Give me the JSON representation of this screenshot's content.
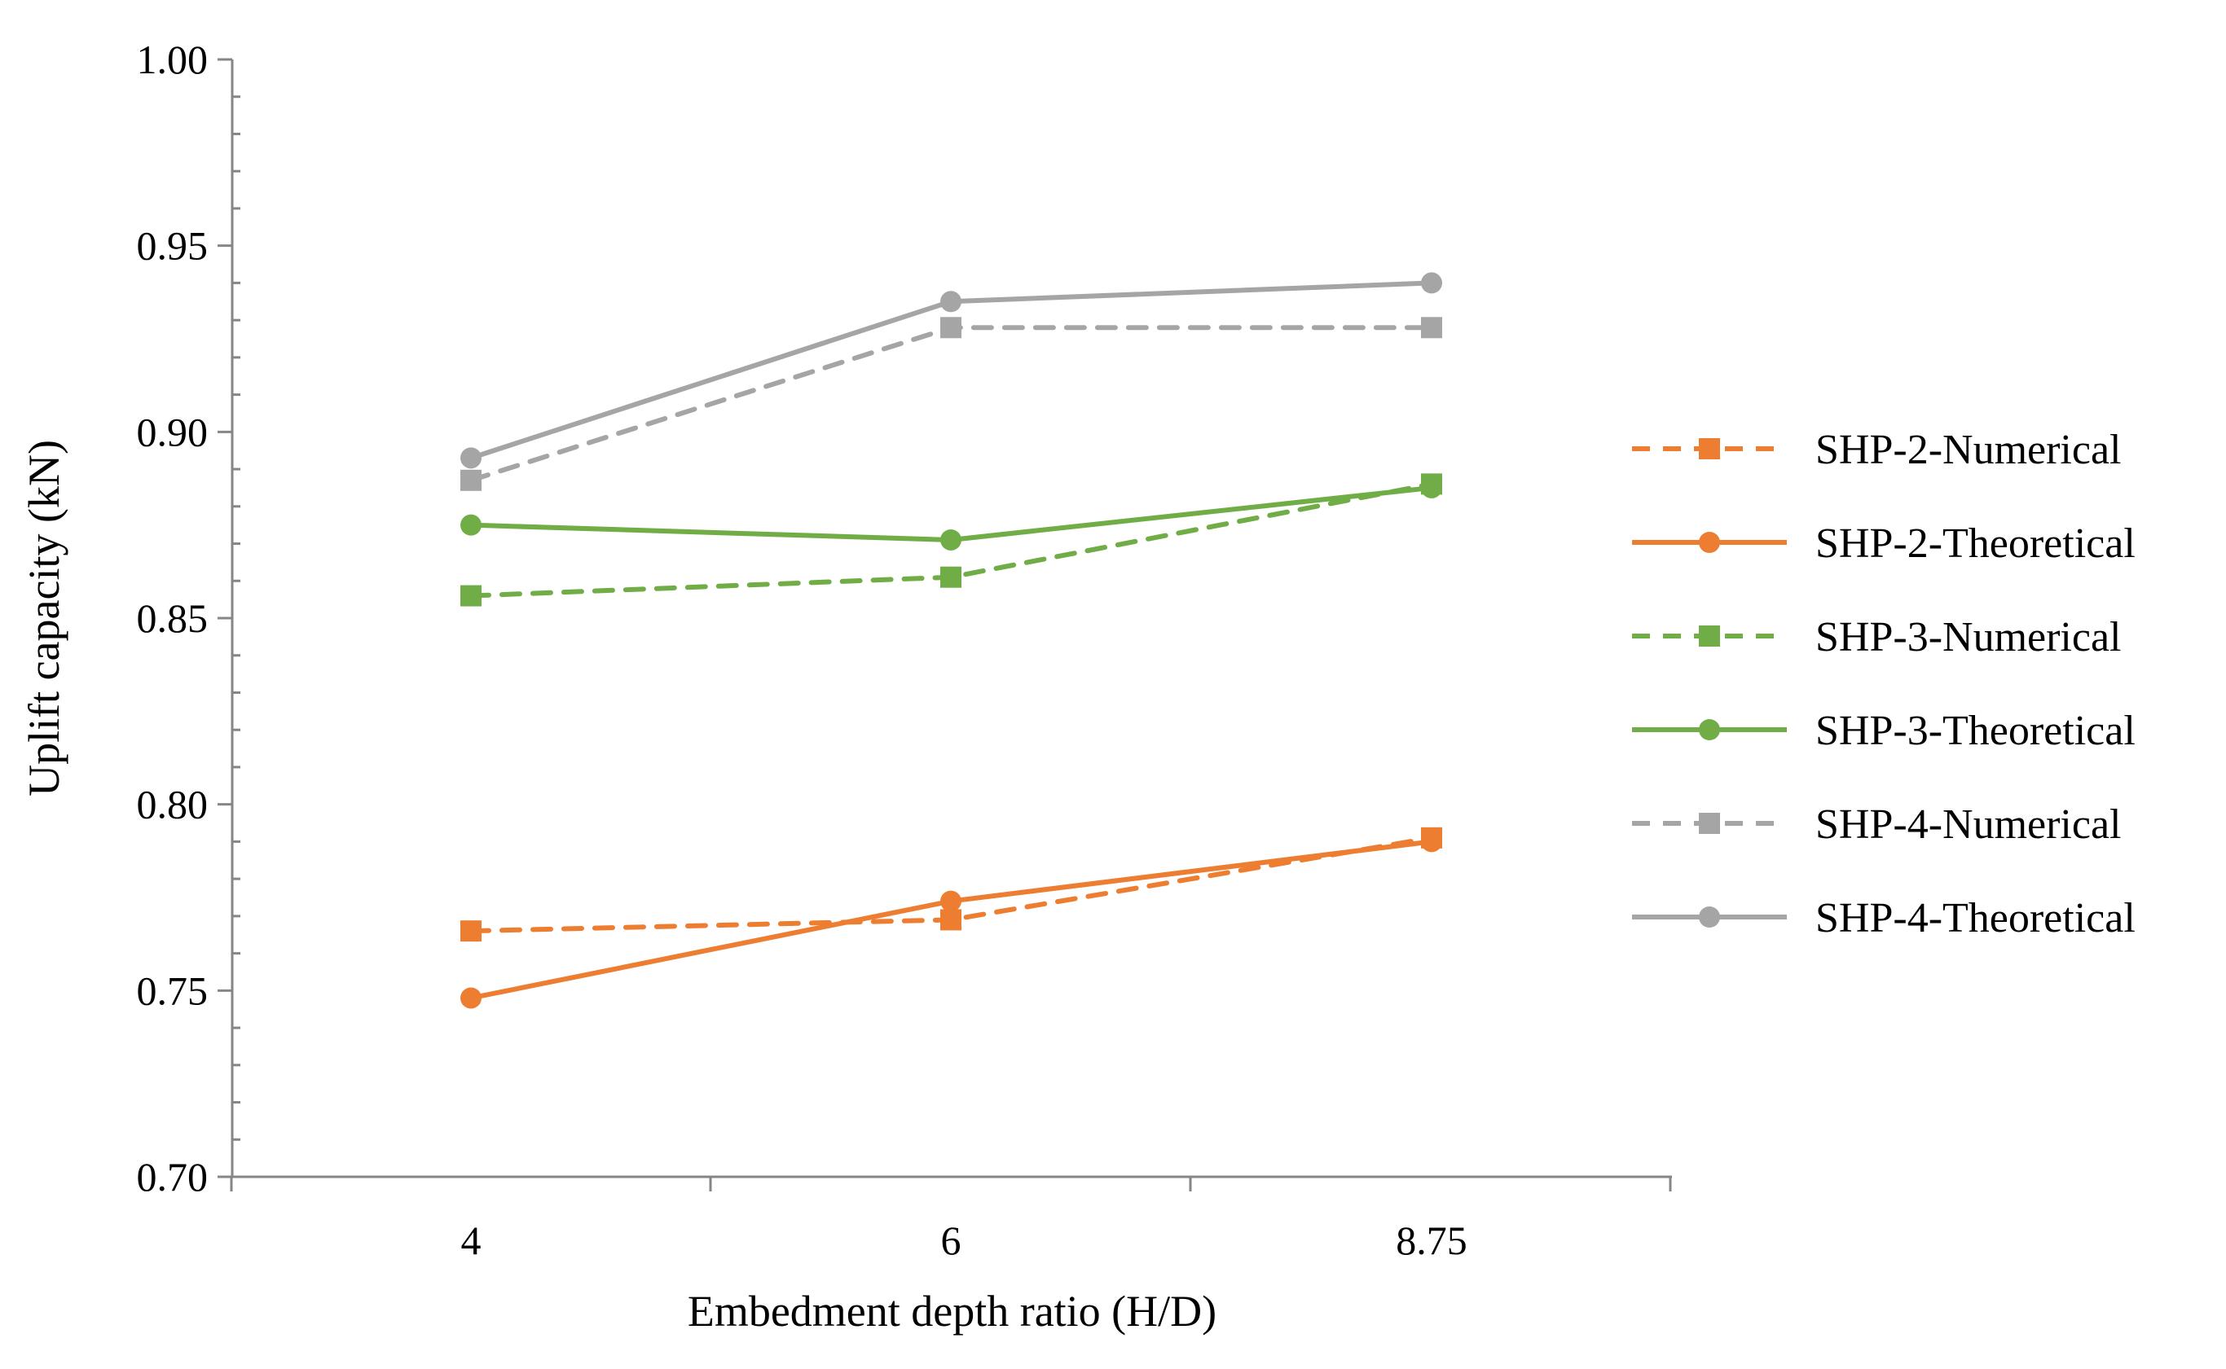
{
  "chart_data": {
    "type": "line",
    "title": "",
    "xlabel": "Embedment depth ratio (H/D)",
    "ylabel": "Uplift capacity (kN)",
    "categories": [
      "4",
      "6",
      "8.75"
    ],
    "ylim": [
      0.7,
      1.0
    ],
    "yticks": [
      "0.70",
      "0.75",
      "0.80",
      "0.85",
      "0.90",
      "0.95",
      "1.00"
    ],
    "legend_position": "right",
    "grid": false,
    "series": [
      {
        "name": "SHP-2-Numerical",
        "values": [
          0.766,
          0.769,
          0.791
        ],
        "color": "#ED7D31",
        "dash": true,
        "marker": "square"
      },
      {
        "name": "SHP-2-Theoretical",
        "values": [
          0.748,
          0.774,
          0.79
        ],
        "color": "#ED7D31",
        "dash": false,
        "marker": "circle"
      },
      {
        "name": "SHP-3-Numerical",
        "values": [
          0.856,
          0.861,
          0.886
        ],
        "color": "#70AD47",
        "dash": true,
        "marker": "square"
      },
      {
        "name": "SHP-3-Theoretical",
        "values": [
          0.875,
          0.871,
          0.885
        ],
        "color": "#70AD47",
        "dash": false,
        "marker": "circle"
      },
      {
        "name": "SHP-4-Numerical",
        "values": [
          0.887,
          0.928,
          0.928
        ],
        "color": "#A5A5A5",
        "dash": true,
        "marker": "square"
      },
      {
        "name": "SHP-4-Theoretical",
        "values": [
          0.893,
          0.935,
          0.94
        ],
        "color": "#A5A5A5",
        "dash": false,
        "marker": "circle"
      }
    ]
  }
}
